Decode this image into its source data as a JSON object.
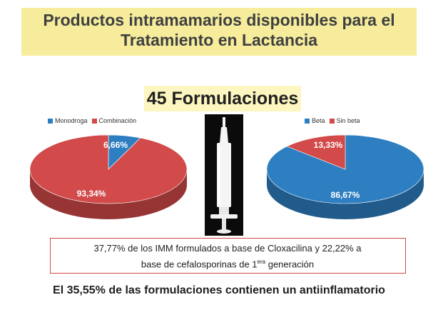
{
  "header": {
    "title_line1": "Productos intramamarios disponibles para el",
    "title_line2": "Tratamiento en Lactancia"
  },
  "subtitle": "45 Formulaciones",
  "colors": {
    "blue": "#2e7fc2",
    "red": "#d24a4a",
    "yellow_band": "#f6ec9c"
  },
  "chart_data": [
    {
      "type": "pie",
      "legend": [
        "Monodroga",
        "Combinación"
      ],
      "slices": [
        {
          "label": "Monodroga",
          "value": 6.66,
          "text": "6,66%",
          "color": "#2e7fc2"
        },
        {
          "label": "Combinación",
          "value": 93.34,
          "text": "93,34%",
          "color": "#d24a4a"
        }
      ],
      "legend_position": "top-left"
    },
    {
      "type": "pie",
      "legend": [
        "Beta",
        "Sin beta"
      ],
      "slices": [
        {
          "label": "Beta",
          "value": 86.67,
          "text": "86,67%",
          "color": "#2e7fc2"
        },
        {
          "label": "Sin beta",
          "value": 13.33,
          "text": "13,33%",
          "color": "#d24a4a"
        }
      ],
      "legend_position": "top-left"
    }
  ],
  "note": {
    "line1": "37,77% de los IMM formulados a base de Cloxacilina y 22,22% a",
    "line2_pre": "base de cefalosporinas de 1",
    "line2_sup": "era",
    "line2_post": " generación"
  },
  "footer": "El 35,55% de las formulaciones contienen un antiinflamatorio"
}
